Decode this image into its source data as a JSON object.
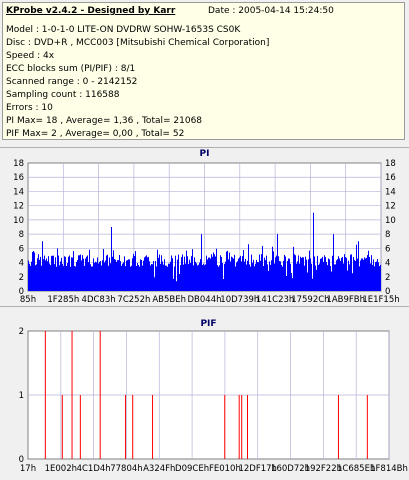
{
  "info": {
    "title": "KProbe v2.4.2 - Designed by Karr",
    "date": "Date : 2005-04-14 15:24:50",
    "lines": [
      "Model : 1-0-1-0 LITE-ON DVDRW SOHW-1653S CS0K",
      "Disc : DVD+R , MCC003 [Mitsubishi Chemical Corporation]",
      "Speed : 4x",
      "ECC blocks sum (PI/PIF) : 8/1",
      "Scanned range : 0 - 2142152",
      "Sampling count : 116588",
      "Errors : 10",
      "PI Max= 18 , Average= 1,36 , Total= 21068",
      "PIF Max= 2 , Average= 0,00 , Total= 52"
    ]
  },
  "chart_data": [
    {
      "type": "bar",
      "title": "PI",
      "ylim": [
        0,
        18
      ],
      "yticks": [
        0,
        2,
        4,
        6,
        8,
        10,
        12,
        14,
        16,
        18
      ],
      "x_tick_labels": [
        "85h",
        "1F285h",
        "4DC83h",
        "7C252h",
        "AB5BEh",
        "DB044h",
        "10D739h",
        "141C23h",
        "17592Ch",
        "1AB9FBh",
        "1E1F15h"
      ],
      "baseline": 4,
      "peaks": [
        {
          "pos": 0.235,
          "value": 9
        },
        {
          "pos": 0.04,
          "value": 7
        },
        {
          "pos": 0.49,
          "value": 8
        },
        {
          "pos": 0.705,
          "value": 8
        },
        {
          "pos": 0.806,
          "value": 11
        },
        {
          "pos": 0.865,
          "value": 8
        },
        {
          "pos": 0.935,
          "value": 7
        }
      ],
      "colors": {
        "bars": "#0000ff",
        "grid": "#b4b4d8",
        "plot_bg": "#ffffff"
      },
      "grid": true
    },
    {
      "type": "bar",
      "title": "PIF",
      "ylim": [
        0,
        2
      ],
      "yticks": [
        0,
        1,
        2
      ],
      "x_tick_labels": [
        "17h",
        "1E002h",
        "4C1D4h",
        "77804h",
        "A324Fh",
        "D09CEh",
        "FE010h",
        "12DF17h",
        "160D72h",
        "192F22h",
        "1C685Eh",
        "1F814Bh"
      ],
      "bars": [
        {
          "pos": 0.048,
          "value": 2
        },
        {
          "pos": 0.095,
          "value": 1
        },
        {
          "pos": 0.122,
          "value": 2
        },
        {
          "pos": 0.145,
          "value": 1
        },
        {
          "pos": 0.2,
          "value": 2
        },
        {
          "pos": 0.27,
          "value": 1
        },
        {
          "pos": 0.29,
          "value": 1
        },
        {
          "pos": 0.345,
          "value": 1
        },
        {
          "pos": 0.545,
          "value": 1
        },
        {
          "pos": 0.585,
          "value": 1
        },
        {
          "pos": 0.592,
          "value": 1
        },
        {
          "pos": 0.608,
          "value": 1
        },
        {
          "pos": 0.86,
          "value": 1
        },
        {
          "pos": 0.94,
          "value": 1
        }
      ],
      "colors": {
        "bars": "#ff0000",
        "grid": "#b4b4d8",
        "plot_bg": "#ffffff"
      },
      "grid": true
    }
  ]
}
